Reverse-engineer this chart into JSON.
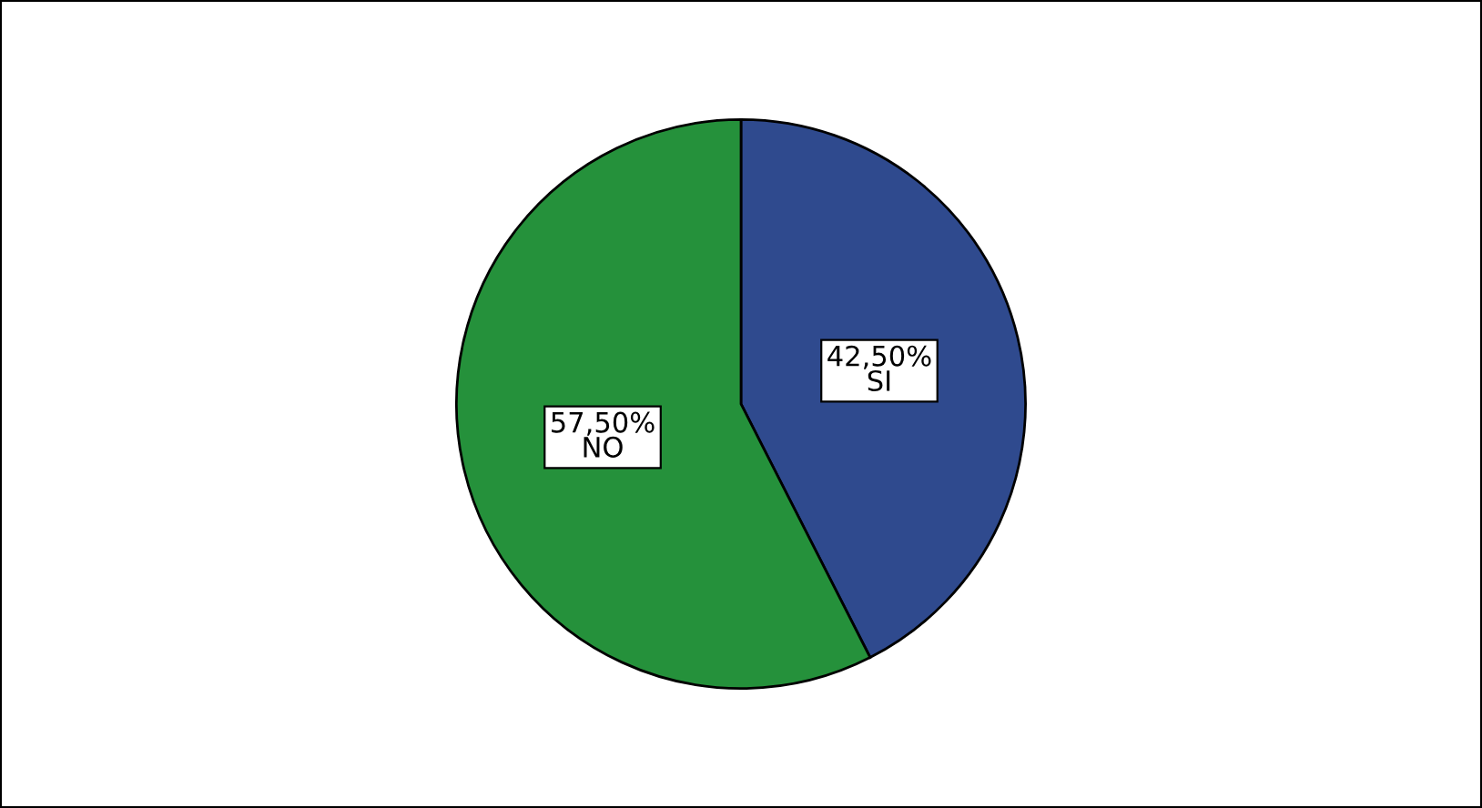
{
  "chart_data": {
    "type": "pie",
    "categories": [
      "SI",
      "NO"
    ],
    "values": [
      42.5,
      57.5
    ],
    "value_labels": [
      "42,50%",
      "57,50%"
    ],
    "colors": [
      "#2f4a8e",
      "#25913b"
    ]
  }
}
